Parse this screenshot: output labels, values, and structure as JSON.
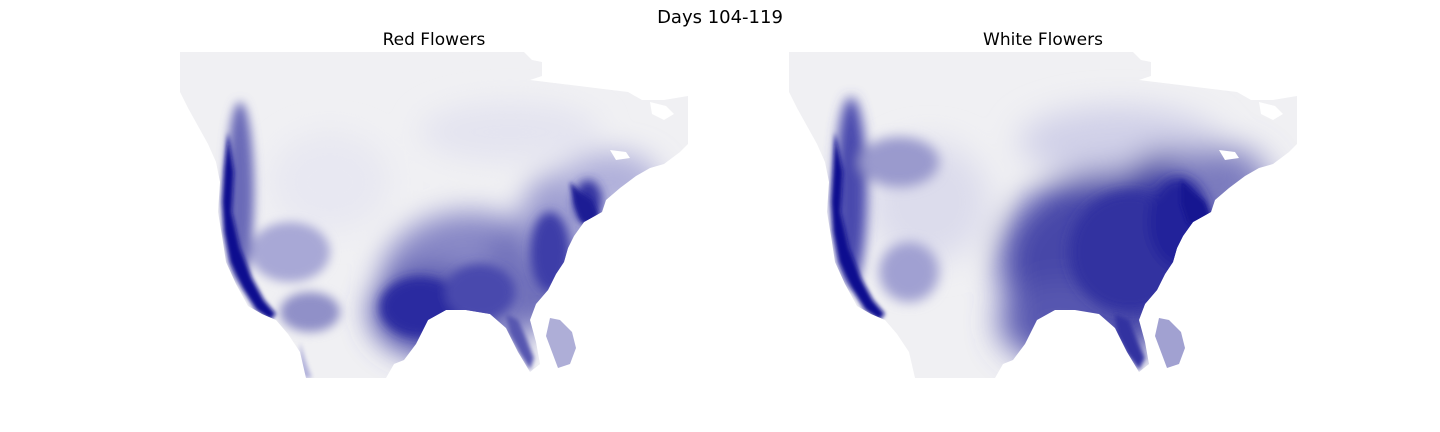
{
  "figure": {
    "title": "Days 104-119"
  },
  "colors": {
    "ocean": "#ffffff",
    "land_low": "#f0f0f3",
    "land_high": "#10108f"
  },
  "panels": [
    {
      "title": "Red Flowers"
    },
    {
      "title": "White Flowers"
    }
  ]
}
